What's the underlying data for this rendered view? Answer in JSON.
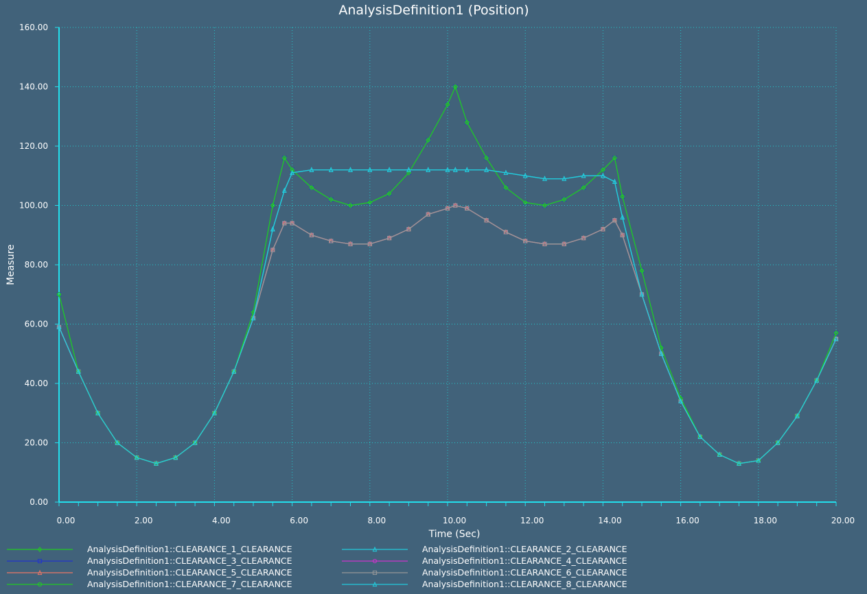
{
  "chart_data": {
    "type": "line",
    "title": "AnalysisDefinition1 (Position)",
    "xlabel": "Time (Sec)",
    "ylabel": "Measure",
    "xlim": [
      0,
      20
    ],
    "ylim": [
      0,
      160
    ],
    "xticks": [
      "0.00",
      "2.00",
      "4.00",
      "6.00",
      "8.00",
      "10.00",
      "12.00",
      "14.00",
      "16.00",
      "18.00",
      "20.00"
    ],
    "yticks": [
      "0.00",
      "20.00",
      "40.00",
      "60.00",
      "80.00",
      "100.00",
      "120.00",
      "140.00",
      "160.00"
    ],
    "grid": true,
    "legend_position": "bottom",
    "x": [
      0.0,
      0.5,
      1.0,
      1.5,
      2.0,
      2.5,
      3.0,
      3.5,
      4.0,
      4.5,
      5.0,
      5.5,
      5.8,
      6.0,
      6.5,
      7.0,
      7.5,
      8.0,
      8.5,
      9.0,
      9.5,
      10.0,
      10.2,
      10.5,
      11.0,
      11.5,
      12.0,
      12.5,
      13.0,
      13.5,
      14.0,
      14.3,
      14.5,
      15.0,
      15.5,
      16.0,
      16.5,
      17.0,
      17.5,
      18.0,
      18.5,
      19.0,
      19.5,
      20.0
    ],
    "series": [
      {
        "name": "AnalysisDefinition1::CLEARANCE_1_CLEARANCE",
        "color": "#22cc22",
        "marker": "diamond",
        "values": [
          70,
          44,
          30,
          20,
          15,
          13,
          15,
          20,
          30,
          44,
          64,
          100,
          116,
          112,
          106,
          102,
          100,
          101,
          104,
          111,
          122,
          134,
          140,
          128,
          116,
          106,
          101,
          100,
          102,
          106,
          112,
          116,
          103,
          78,
          52,
          35,
          22,
          16,
          13,
          14,
          20,
          29,
          41,
          57
        ]
      },
      {
        "name": "AnalysisDefinition1::CLEARANCE_2_CLEARANCE",
        "color": "#22ccdd",
        "marker": "triangle",
        "values": [
          59,
          44,
          30,
          20,
          15,
          13,
          15,
          20,
          30,
          44,
          62,
          92,
          105,
          111,
          112,
          112,
          112,
          112,
          112,
          112,
          112,
          112,
          112,
          112,
          112,
          111,
          110,
          109,
          109,
          110,
          110,
          108,
          96,
          70,
          50,
          34,
          22,
          16,
          13,
          14,
          20,
          29,
          41,
          55
        ]
      },
      {
        "name": "AnalysisDefinition1::CLEARANCE_3_CLEARANCE",
        "color": "#2233cc",
        "marker": "square",
        "values": [
          70,
          44,
          30,
          20,
          15,
          13,
          15,
          20,
          30,
          44,
          64,
          100,
          116,
          112,
          106,
          102,
          100,
          101,
          104,
          111,
          122,
          134,
          140,
          128,
          116,
          106,
          101,
          100,
          102,
          106,
          112,
          116,
          103,
          78,
          52,
          35,
          22,
          16,
          13,
          14,
          20,
          29,
          41,
          57
        ]
      },
      {
        "name": "AnalysisDefinition1::CLEARANCE_4_CLEARANCE",
        "color": "#cc33cc",
        "marker": "circle",
        "values": [
          59,
          44,
          30,
          20,
          15,
          13,
          15,
          20,
          30,
          44,
          62,
          85,
          94,
          94,
          90,
          88,
          87,
          87,
          89,
          92,
          97,
          99,
          100,
          99,
          95,
          91,
          88,
          87,
          87,
          89,
          92,
          95,
          90,
          70,
          50,
          34,
          22,
          16,
          13,
          14,
          20,
          29,
          41,
          55
        ]
      },
      {
        "name": "AnalysisDefinition1::CLEARANCE_5_CLEARANCE",
        "color": "#ee7766",
        "marker": "triangle",
        "values": [
          59,
          44,
          30,
          20,
          15,
          13,
          15,
          20,
          30,
          44,
          62,
          85,
          94,
          94,
          90,
          88,
          87,
          87,
          89,
          92,
          97,
          99,
          100,
          99,
          95,
          91,
          88,
          87,
          87,
          89,
          92,
          95,
          90,
          70,
          50,
          34,
          22,
          16,
          13,
          14,
          20,
          29,
          41,
          55
        ]
      },
      {
        "name": "AnalysisDefinition1::CLEARANCE_6_CLEARANCE",
        "color": "#999999",
        "marker": "square",
        "values": [
          59,
          44,
          30,
          20,
          15,
          13,
          15,
          20,
          30,
          44,
          62,
          85,
          94,
          94,
          90,
          88,
          87,
          87,
          89,
          92,
          97,
          99,
          100,
          99,
          95,
          91,
          88,
          87,
          87,
          89,
          92,
          95,
          90,
          70,
          50,
          34,
          22,
          16,
          13,
          14,
          20,
          29,
          41,
          55
        ]
      },
      {
        "name": "AnalysisDefinition1::CLEARANCE_7_CLEARANCE",
        "color": "#22cc22",
        "marker": "circle",
        "values": [
          70,
          44,
          30,
          20,
          15,
          13,
          15,
          20,
          30,
          44,
          64,
          100,
          116,
          112,
          106,
          102,
          100,
          101,
          104,
          111,
          122,
          134,
          140,
          128,
          116,
          106,
          101,
          100,
          102,
          106,
          112,
          116,
          103,
          78,
          52,
          35,
          22,
          16,
          13,
          14,
          20,
          29,
          41,
          57
        ]
      },
      {
        "name": "AnalysisDefinition1::CLEARANCE_8_CLEARANCE",
        "color": "#22ccdd",
        "marker": "triangle",
        "values": [
          59,
          44,
          30,
          20,
          15,
          13,
          15,
          20,
          30,
          44,
          62,
          92,
          105,
          111,
          112,
          112,
          112,
          112,
          112,
          112,
          112,
          112,
          112,
          112,
          112,
          111,
          110,
          109,
          109,
          110,
          110,
          108,
          96,
          70,
          50,
          34,
          22,
          16,
          13,
          14,
          20,
          29,
          41,
          55
        ]
      }
    ]
  },
  "colors": {
    "background": "#41627a",
    "axis": "#22e0ee",
    "grid": "#22c8cc",
    "text": "#ffffff"
  }
}
